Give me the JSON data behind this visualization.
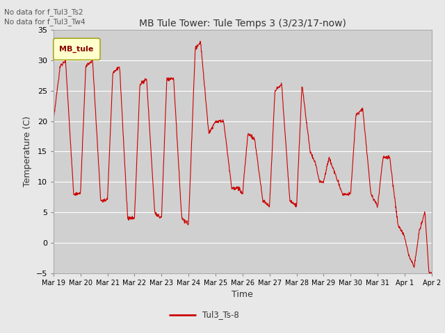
{
  "title": "MB Tule Tower: Tule Temps 3 (3/23/17-now)",
  "xlabel": "Time",
  "ylabel": "Temperature (C)",
  "ylim": [
    -5,
    35
  ],
  "yticks": [
    -5,
    0,
    5,
    10,
    15,
    20,
    25,
    30,
    35
  ],
  "line_color": "#cc0000",
  "line_label": "Tul3_Ts-8",
  "legend_label": "MB_tule",
  "annotations": [
    "No data for f_Tul3_Ts2",
    "No data for f_Tul3_Tw4"
  ],
  "fig_bg_color": "#e8e8e8",
  "plot_bg_color": "#d0d0d0",
  "grid_color": "#ffffff",
  "xtick_labels": [
    "Mar 19",
    "Mar 20",
    "Mar 21",
    "Mar 22",
    "Mar 23",
    "Mar 24",
    "Mar 25",
    "Mar 26",
    "Mar 27",
    "Mar 28",
    "Mar 29",
    "Mar 30",
    "Mar 31",
    "Apr 1",
    "Apr 2"
  ],
  "ctrl_t": [
    0.0,
    0.25,
    0.45,
    0.75,
    1.0,
    1.2,
    1.45,
    1.75,
    2.0,
    2.2,
    2.45,
    2.75,
    3.0,
    3.2,
    3.45,
    3.75,
    4.0,
    4.2,
    4.45,
    4.75,
    5.0,
    5.25,
    5.45,
    5.75,
    6.0,
    6.3,
    6.6,
    6.85,
    7.0,
    7.2,
    7.45,
    7.75,
    8.0,
    8.2,
    8.45,
    8.75,
    9.0,
    9.2,
    9.5,
    9.7,
    9.85,
    10.0,
    10.2,
    10.45,
    10.7,
    11.0,
    11.2,
    11.45,
    11.75,
    12.0,
    12.2,
    12.45,
    12.75,
    13.0,
    13.15,
    13.35,
    13.55,
    13.75,
    13.9,
    14.0
  ],
  "ctrl_v": [
    20,
    29,
    30,
    8,
    8,
    29,
    30,
    7,
    7,
    28,
    29,
    4,
    4,
    26,
    27,
    5,
    4,
    27,
    27,
    4,
    3,
    32,
    33,
    18,
    20,
    20,
    9,
    9,
    8,
    18,
    17,
    7,
    6,
    25,
    26,
    7,
    6,
    26,
    15,
    13,
    10,
    10,
    14,
    11,
    8,
    8,
    21,
    22,
    8,
    6,
    14,
    14,
    3,
    1,
    -2,
    -4,
    2,
    5,
    -5,
    -5
  ]
}
